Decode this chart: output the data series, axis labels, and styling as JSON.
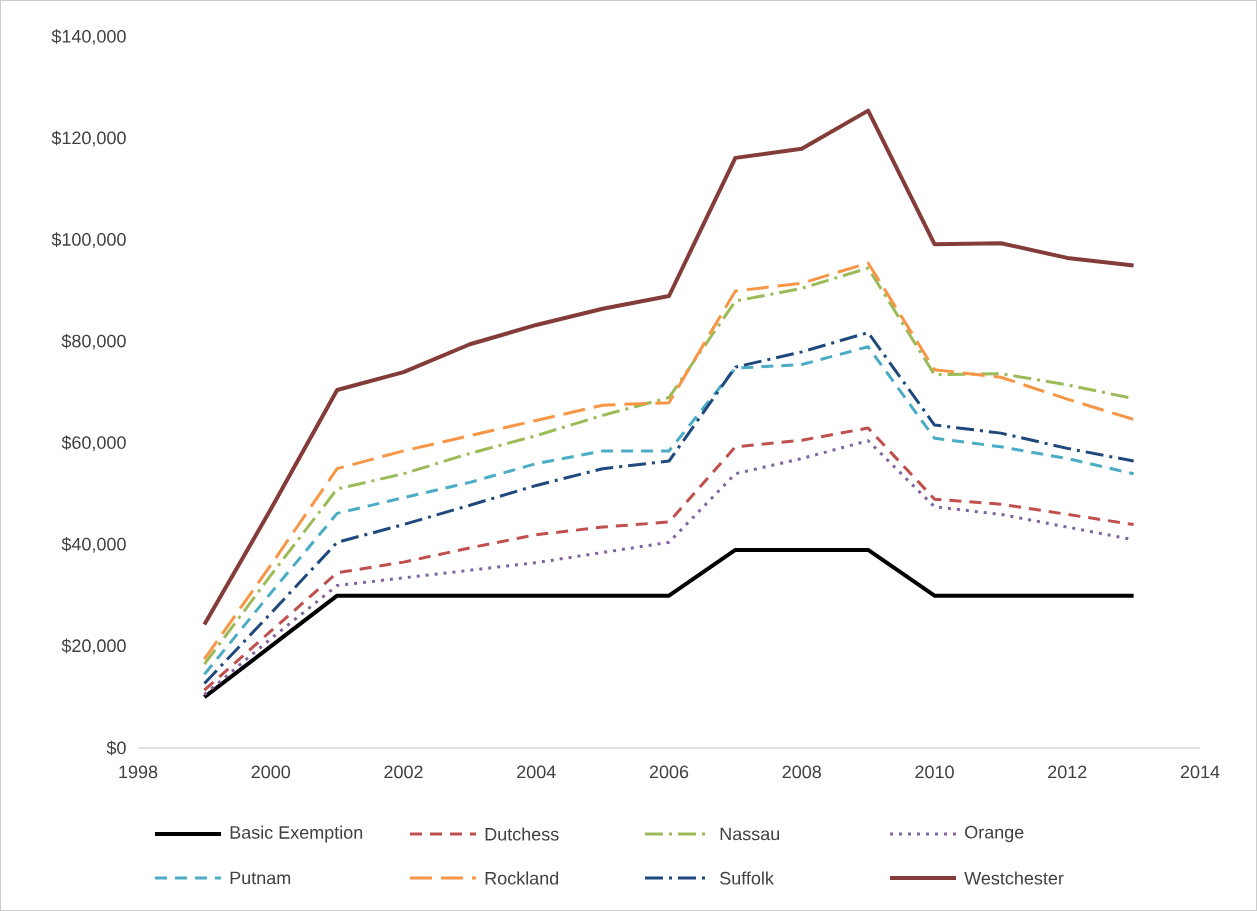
{
  "chart_data": {
    "type": "line",
    "x": [
      1999,
      2000,
      2001,
      2002,
      2003,
      2004,
      2005,
      2006,
      2007,
      2008,
      2009,
      2010,
      2011,
      2012,
      2013
    ],
    "xlim": [
      1998,
      2014
    ],
    "xticks": [
      1998,
      2000,
      2002,
      2004,
      2006,
      2008,
      2010,
      2012,
      2014
    ],
    "ylim": [
      0,
      140000
    ],
    "yticks": [
      {
        "value": 0,
        "label": "$0"
      },
      {
        "value": 20000,
        "label": "$20,000"
      },
      {
        "value": 40000,
        "label": "$40,000"
      },
      {
        "value": 60000,
        "label": "$60,000"
      },
      {
        "value": 80000,
        "label": "$80,000"
      },
      {
        "value": 100000,
        "label": "$100,000"
      },
      {
        "value": 120000,
        "label": "$120,000"
      },
      {
        "value": 140000,
        "label": "$140,000"
      }
    ],
    "legend": "bottom",
    "grid": false,
    "marker": "none",
    "series": [
      {
        "name": "Basic Exemption",
        "color": "#000000",
        "line_style": "solid",
        "values": [
          10000,
          20000,
          30000,
          30000,
          30000,
          30000,
          30000,
          30000,
          39000,
          39000,
          39000,
          30000,
          30000,
          30000,
          30000
        ]
      },
      {
        "name": "Dutchess",
        "color": "#c0504d",
        "line_style": "dashed",
        "values": [
          11400,
          23000,
          34500,
          36600,
          39400,
          42000,
          43500,
          44500,
          59300,
          60600,
          63000,
          49000,
          48000,
          46000,
          44000
        ]
      },
      {
        "name": "Nassau",
        "color": "#9bbb59",
        "line_style": "dashdot",
        "values": [
          16500,
          34000,
          51000,
          54000,
          58000,
          61500,
          65500,
          69000,
          88000,
          90500,
          94500,
          73500,
          73700,
          71500,
          68800
        ]
      },
      {
        "name": "Orange",
        "color": "#8064a2",
        "line_style": "dotted",
        "values": [
          10500,
          21500,
          32000,
          33500,
          35000,
          36500,
          38500,
          40500,
          54000,
          57000,
          60500,
          47500,
          46000,
          43500,
          41000
        ]
      },
      {
        "name": "Putnam",
        "color": "#4bacc6",
        "line_style": "dashed",
        "values": [
          14500,
          30500,
          46200,
          49300,
          52300,
          56000,
          58500,
          58500,
          74800,
          75500,
          79000,
          61000,
          59300,
          57000,
          54000
        ]
      },
      {
        "name": "Rockland",
        "color": "#f79646",
        "line_style": "longdashed",
        "values": [
          17500,
          36000,
          55000,
          58500,
          61500,
          64500,
          67500,
          68000,
          90000,
          91500,
          95500,
          74500,
          73000,
          68700,
          64700
        ]
      },
      {
        "name": "Suffolk",
        "color": "#1f497d",
        "line_style": "dashdot",
        "values": [
          12700,
          26500,
          40500,
          44000,
          47800,
          51700,
          55000,
          56500,
          75000,
          78000,
          81800,
          63600,
          62000,
          59000,
          56500
        ]
      },
      {
        "name": "Westchester",
        "color": "#843c39",
        "line_style": "solid",
        "values": [
          24300,
          47000,
          70500,
          74000,
          79500,
          83300,
          86500,
          89000,
          116200,
          118000,
          125500,
          99200,
          99400,
          96500,
          95000
        ]
      }
    ]
  }
}
